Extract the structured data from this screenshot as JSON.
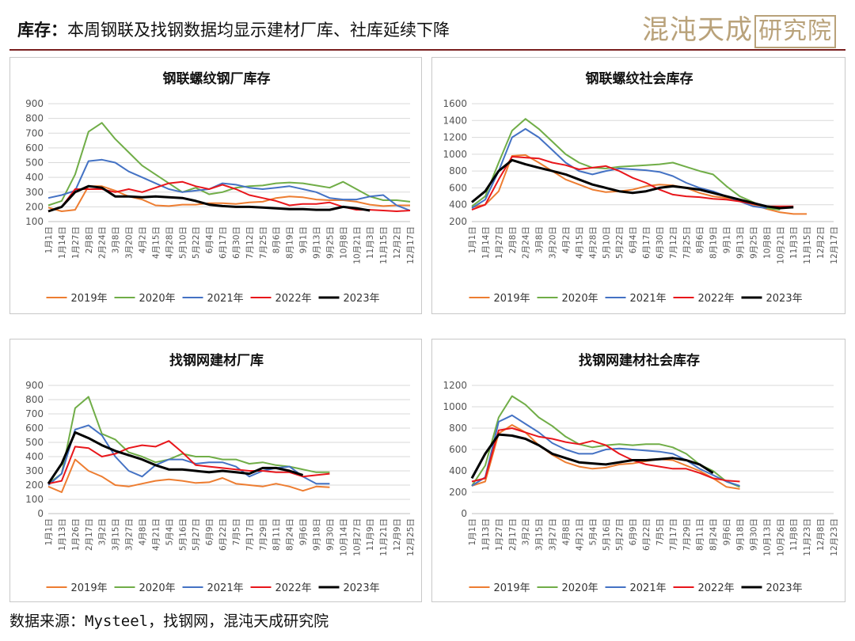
{
  "header": {
    "title_prefix": "库存：",
    "title": "本周钢联及找钢数据均显示建材厂库、社库延续下降",
    "logo_text": "混沌天成",
    "logo_box_text": "研究院"
  },
  "footer": {
    "source": "数据来源：Mysteel，找钢网，混沌天成研究院"
  },
  "colors": {
    "2019年": "#ED7D31",
    "2020年": "#70AD47",
    "2021年": "#4472C4",
    "2022年": "#E8161B",
    "2023年": "#000000"
  },
  "chart_data": [
    {
      "type": "line",
      "title": "钢联螺纹钢厂库存",
      "ylim": [
        100,
        900
      ],
      "yticks": [
        100,
        200,
        300,
        400,
        500,
        600,
        700,
        800,
        900
      ],
      "xlabels": [
        "1月1日",
        "1月14日",
        "1月27日",
        "2月8日",
        "2月24日",
        "3月8日",
        "3月20日",
        "4月2日",
        "4月15日",
        "4月28日",
        "5月10日",
        "5月22日",
        "6月4日",
        "6月17日",
        "6月30日",
        "7月12日",
        "7月25日",
        "8月6日",
        "8月19日",
        "9月1日",
        "9月13日",
        "9月25日",
        "10月8日",
        "10月21日",
        "11月3日",
        "11月15日",
        "12月2日",
        "12月17日"
      ],
      "legend": [
        "2019年",
        "2020年",
        "2021年",
        "2022年",
        "2023年"
      ],
      "grid": true,
      "series": [
        {
          "name": "2019年",
          "values": [
            195,
            170,
            180,
            340,
            340,
            310,
            270,
            250,
            210,
            205,
            215,
            215,
            225,
            225,
            220,
            230,
            235,
            260,
            270,
            265,
            250,
            245,
            245,
            235,
            215,
            205,
            210,
            210
          ]
        },
        {
          "name": "2020年",
          "values": [
            210,
            240,
            420,
            710,
            770,
            660,
            570,
            480,
            420,
            360,
            300,
            330,
            285,
            300,
            330,
            340,
            345,
            360,
            365,
            360,
            345,
            330,
            370,
            320,
            270,
            245,
            245,
            235
          ]
        },
        {
          "name": "2021年",
          "values": [
            260,
            280,
            310,
            510,
            520,
            500,
            440,
            400,
            360,
            320,
            300,
            310,
            320,
            360,
            350,
            330,
            320,
            330,
            340,
            320,
            300,
            260,
            250,
            250,
            270,
            280,
            210,
            175
          ]
        },
        {
          "name": "2022年",
          "values": [
            170,
            200,
            320,
            320,
            320,
            300,
            320,
            300,
            330,
            360,
            370,
            340,
            320,
            350,
            320,
            280,
            260,
            240,
            210,
            220,
            220,
            230,
            200,
            180,
            180,
            175,
            170,
            175
          ]
        },
        {
          "name": "2023年",
          "values": [
            170,
            200,
            300,
            340,
            330,
            270,
            270,
            265,
            270,
            265,
            260,
            240,
            215,
            205,
            200,
            200,
            195,
            190,
            185,
            185,
            180,
            180,
            200,
            190,
            175
          ]
        }
      ]
    },
    {
      "type": "line",
      "title": "钢联螺纹社会库存",
      "ylim": [
        200,
        1600
      ],
      "yticks": [
        200,
        400,
        600,
        800,
        1000,
        1200,
        1400,
        1600
      ],
      "xlabels": [
        "1月1日",
        "1月14日",
        "1月27日",
        "2月8日",
        "2月24日",
        "3月8日",
        "3月20日",
        "4月2日",
        "4月15日",
        "4月28日",
        "5月10日",
        "5月22日",
        "6月4日",
        "6月17日",
        "6月30日",
        "7月12日",
        "7月25日",
        "8月6日",
        "8月19日",
        "9月1日",
        "9月13日",
        "9月25日",
        "10月8日",
        "10月21日",
        "11月3日",
        "11月15日",
        "12月2日",
        "12月17日"
      ],
      "legend": [
        "2019年",
        "2020年",
        "2021年",
        "2022年",
        "2023年"
      ],
      "grid": true,
      "series": [
        {
          "name": "2019年",
          "values": [
            370,
            400,
            560,
            980,
            990,
            900,
            800,
            700,
            640,
            580,
            550,
            560,
            580,
            620,
            640,
            630,
            600,
            540,
            500,
            480,
            460,
            400,
            350,
            310,
            290,
            290
          ]
        },
        {
          "name": "2020年",
          "values": [
            380,
            500,
            900,
            1280,
            1420,
            1300,
            1150,
            1000,
            900,
            840,
            830,
            850,
            860,
            870,
            880,
            900,
            850,
            800,
            760,
            620,
            500,
            430,
            360,
            340
          ]
        },
        {
          "name": "2021年",
          "values": [
            360,
            460,
            800,
            1200,
            1300,
            1200,
            1050,
            900,
            800,
            760,
            800,
            830,
            820,
            810,
            790,
            740,
            660,
            600,
            560,
            500,
            440,
            380,
            360
          ]
        },
        {
          "name": "2022年",
          "values": [
            340,
            400,
            700,
            970,
            960,
            950,
            900,
            870,
            820,
            840,
            860,
            800,
            720,
            660,
            580,
            520,
            500,
            490,
            470,
            460,
            440,
            410,
            380,
            380,
            380
          ]
        },
        {
          "name": "2023年",
          "values": [
            430,
            560,
            800,
            930,
            880,
            840,
            800,
            760,
            700,
            640,
            600,
            560,
            540,
            560,
            600,
            620,
            600,
            580,
            540,
            500,
            460,
            420,
            380,
            360,
            370
          ]
        }
      ]
    },
    {
      "type": "line",
      "title": "找钢网建材厂库",
      "ylim": [
        0,
        900
      ],
      "yticks": [
        0,
        100,
        200,
        300,
        400,
        500,
        600,
        700,
        800,
        900
      ],
      "xlabels": [
        "1月1日",
        "1月13日",
        "1月26日",
        "2月17日",
        "3月2日",
        "3月15日",
        "3月27日",
        "4月8日",
        "4月21日",
        "5月4日",
        "5月16日",
        "5月27日",
        "6月9日",
        "6月22日",
        "7月5日",
        "7月17日",
        "7月29日",
        "8月11日",
        "8月24日",
        "9月6日",
        "9月18日",
        "9月30日",
        "10月14日",
        "10月27日",
        "11月9日",
        "11月21日",
        "12月9日",
        "12月25日"
      ],
      "legend": [
        "2019年",
        "2020年",
        "2021年",
        "2022年",
        "2023年"
      ],
      "grid": true,
      "series": [
        {
          "name": "2019年",
          "values": [
            190,
            150,
            380,
            300,
            260,
            200,
            190,
            210,
            230,
            240,
            230,
            215,
            220,
            250,
            210,
            200,
            190,
            210,
            190,
            160,
            190,
            185
          ]
        },
        {
          "name": "2020年",
          "values": [
            210,
            280,
            740,
            820,
            560,
            520,
            430,
            400,
            360,
            380,
            420,
            400,
            400,
            380,
            380,
            350,
            360,
            340,
            330,
            310,
            290,
            290
          ]
        },
        {
          "name": "2021年",
          "values": [
            200,
            280,
            590,
            620,
            550,
            400,
            300,
            260,
            340,
            380,
            380,
            350,
            360,
            360,
            330,
            260,
            300,
            320,
            330,
            260,
            210,
            210
          ]
        },
        {
          "name": "2022年",
          "values": [
            210,
            230,
            470,
            460,
            400,
            420,
            460,
            480,
            470,
            510,
            430,
            340,
            330,
            320,
            310,
            300,
            300,
            290,
            290,
            260,
            270,
            280
          ]
        },
        {
          "name": "2023年",
          "values": [
            210,
            350,
            570,
            530,
            480,
            440,
            410,
            380,
            340,
            310,
            310,
            300,
            290,
            300,
            290,
            280,
            320,
            320,
            300,
            270
          ]
        }
      ]
    },
    {
      "type": "line",
      "title": "找钢网建材社会库存",
      "ylim": [
        0,
        1200
      ],
      "yticks": [
        0,
        200,
        400,
        600,
        800,
        1000,
        1200
      ],
      "xlabels": [
        "1月1日",
        "1月13日",
        "1月27日",
        "2月17日",
        "3月2日",
        "3月15日",
        "3月27日",
        "4月8日",
        "4月21日",
        "5月4日",
        "5月16日",
        "5月27日",
        "6月9日",
        "6月22日",
        "7月5日",
        "7月17日",
        "7月29日",
        "8月11日",
        "8月24日",
        "9月6日",
        "9月18日",
        "9月30日",
        "10月13日",
        "10月26日",
        "11月8日",
        "11月23日",
        "12月8日",
        "12月23日"
      ],
      "legend": [
        "2019年",
        "2020年",
        "2021年",
        "2022年",
        "2023年"
      ],
      "grid": true,
      "series": [
        {
          "name": "2019年",
          "values": [
            260,
            300,
            750,
            830,
            760,
            640,
            550,
            480,
            440,
            420,
            430,
            460,
            470,
            490,
            510,
            500,
            450,
            400,
            330,
            250,
            230
          ]
        },
        {
          "name": "2020年",
          "values": [
            260,
            450,
            900,
            1100,
            1020,
            900,
            820,
            720,
            650,
            620,
            640,
            650,
            640,
            650,
            650,
            620,
            560,
            460,
            400,
            300,
            250
          ]
        },
        {
          "name": "2021年",
          "values": [
            260,
            340,
            860,
            920,
            840,
            760,
            660,
            600,
            560,
            560,
            600,
            610,
            600,
            590,
            580,
            560,
            500,
            420,
            360,
            300,
            260
          ]
        },
        {
          "name": "2022年",
          "values": [
            300,
            330,
            780,
            800,
            760,
            720,
            700,
            670,
            650,
            680,
            640,
            560,
            500,
            460,
            440,
            420,
            420,
            380,
            330,
            310,
            300
          ]
        },
        {
          "name": "2023年",
          "values": [
            330,
            560,
            740,
            730,
            700,
            640,
            560,
            520,
            480,
            470,
            460,
            480,
            500,
            500,
            510,
            520,
            500,
            460,
            380
          ]
        }
      ]
    }
  ]
}
